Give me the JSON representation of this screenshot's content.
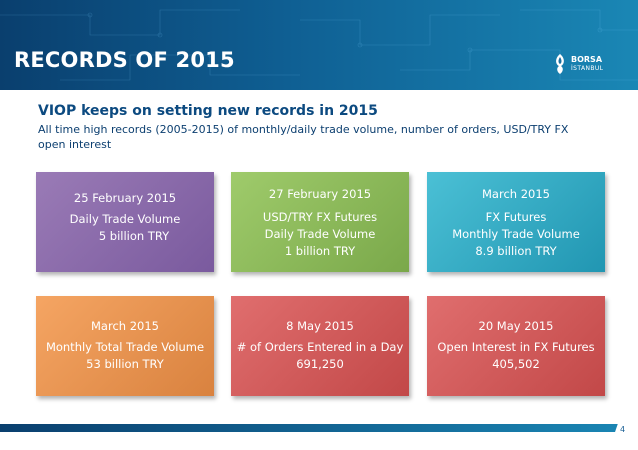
{
  "header": {
    "title": "RECORDS OF 2015",
    "logo": {
      "line1": "BORSA",
      "line2": "İSTANBUL",
      "icon": "tulip-logo-icon"
    }
  },
  "intro": {
    "heading": "VIOP keeps on setting new records in 2015",
    "subheading": "All time high records (2005-2015) of monthly/daily trade volume, number of orders, USD/TRY FX open interest"
  },
  "cards": [
    {
      "date": "25 February 2015",
      "lines": [
        "Daily Trade Volume",
        "5 billion TRY"
      ],
      "color": "#8a6aab"
    },
    {
      "date": "27 February 2015",
      "lines": [
        "USD/TRY FX Futures",
        "Daily Trade Volume",
        "1 billion TRY"
      ],
      "color": "#8dbb59"
    },
    {
      "date": "March 2015",
      "lines": [
        "FX Futures",
        "Monthly Trade Volume",
        "8.9 billion TRY"
      ],
      "color": "#33abc4"
    },
    {
      "date": "March 2015",
      "lines": [
        "Monthly Total Trade Volume",
        "53 billion TRY"
      ],
      "color": "#e99450"
    },
    {
      "date": "8 May 2015",
      "lines": [
        "# of Orders Entered in a Day",
        "691,250"
      ],
      "color": "#d15b5b"
    },
    {
      "date": "20 May 2015",
      "lines": [
        "Open Interest in FX Futures",
        "405,502"
      ],
      "color": "#d15b5b"
    }
  ],
  "footer": {
    "page_number": "4"
  },
  "colors": {
    "banner": "#0f5f93",
    "heading": "#0c4a80"
  }
}
